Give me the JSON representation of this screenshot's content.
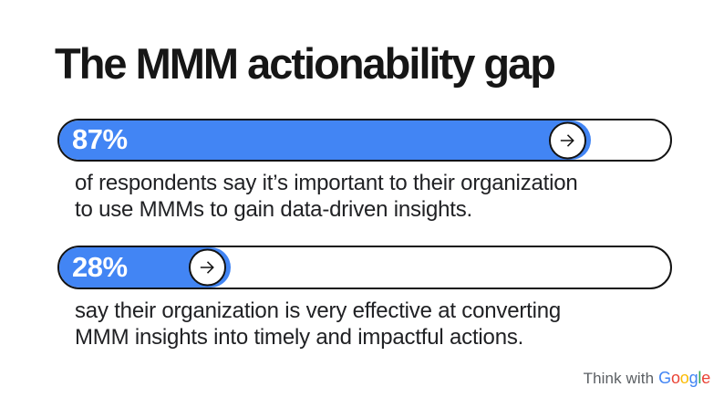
{
  "title": "The MMM actionability gap",
  "accent_color": "#4285F4",
  "chart_data": {
    "type": "bar",
    "title": "The MMM actionability gap",
    "orientation": "horizontal",
    "unit": "%",
    "xlim": [
      0,
      100
    ],
    "categories": [
      "important to their organization to use MMMs to gain data-driven insights",
      "organization is very effective at converting MMM insights into timely and impactful actions"
    ],
    "values": [
      87,
      28
    ],
    "bar_color": "#4285F4",
    "grid": false,
    "legend": false
  },
  "bars": [
    {
      "label": "87%",
      "percent": 87,
      "caption_lines": [
        "of respondents say it’s important to their organization",
        "to use MMMs to gain data-driven insights."
      ]
    },
    {
      "label": "28%",
      "percent": 28,
      "caption_lines": [
        "say their organization is very effective at converting",
        "MMM insights into timely and impactful actions."
      ]
    }
  ],
  "icons": {
    "bar_arrow": "arrow-right-icon"
  },
  "footer": {
    "think_with": "Think with",
    "google_letters": [
      {
        "char": "G",
        "color": "#4285F4"
      },
      {
        "char": "o",
        "color": "#EA4335"
      },
      {
        "char": "o",
        "color": "#FBBC05"
      },
      {
        "char": "g",
        "color": "#4285F4"
      },
      {
        "char": "l",
        "color": "#34A853"
      },
      {
        "char": "e",
        "color": "#EA4335"
      }
    ]
  }
}
